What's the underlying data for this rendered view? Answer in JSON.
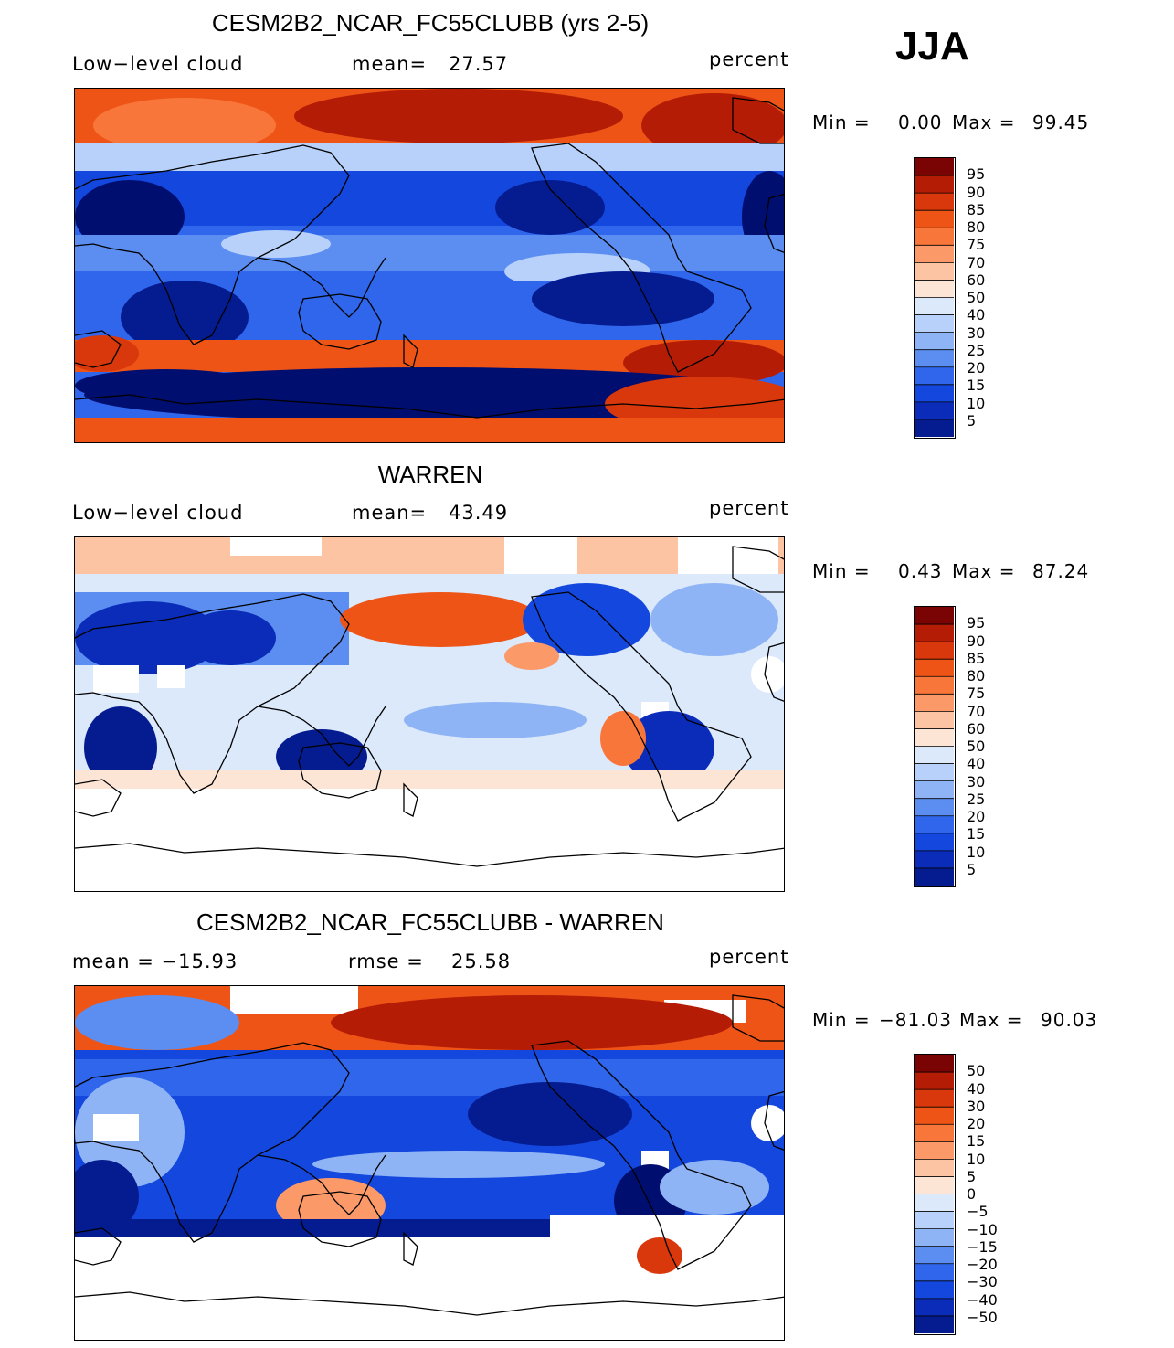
{
  "season": "JJA",
  "palette_warm": [
    "#7a0403",
    "#b51c06",
    "#d8380b",
    "#ee5416",
    "#f8763a",
    "#fb9a68",
    "#fcc4a2",
    "#fde5d6"
  ],
  "palette_cool": [
    "#dbe9fb",
    "#b7d1fa",
    "#8fb4f5",
    "#5b8ef0",
    "#2f66ec",
    "#1447dd",
    "#0a2cb9",
    "#051c91",
    "#000e70"
  ],
  "panels": [
    {
      "title": "CESM2B2_NCAR_FC55CLUBB (yrs 2-5)",
      "left_text": "Low−level  cloud",
      "center_label": "mean=",
      "center_value": "27.57",
      "right_text": "percent",
      "min_label": "Min  =",
      "min_value": "0.00",
      "max_label": "Max  =",
      "max_value": "99.45",
      "colorbar_ticks": [
        "95",
        "90",
        "85",
        "80",
        "75",
        "70",
        "60",
        "50",
        "40",
        "30",
        "25",
        "20",
        "15",
        "10",
        "5"
      ],
      "field": "model"
    },
    {
      "title": "WARREN",
      "left_text": "Low−level  cloud",
      "center_label": "mean=",
      "center_value": "43.49",
      "right_text": "percent",
      "min_label": "Min  =",
      "min_value": "0.43",
      "max_label": "Max  =",
      "max_value": "87.24",
      "colorbar_ticks": [
        "95",
        "90",
        "85",
        "80",
        "75",
        "70",
        "60",
        "50",
        "40",
        "30",
        "25",
        "20",
        "15",
        "10",
        "5"
      ],
      "field": "obs"
    },
    {
      "title": "CESM2B2_NCAR_FC55CLUBB - WARREN",
      "left_text": "mean  =  −15.93",
      "center_label": "rmse  =",
      "center_value": "25.58",
      "right_text": "percent",
      "min_label": "Min  =",
      "min_value": "−81.03",
      "max_label": "Max  =",
      "max_value": "90.03",
      "colorbar_ticks": [
        "50",
        "40",
        "30",
        "20",
        "15",
        "10",
        "5",
        "0",
        "−5",
        "−10",
        "−15",
        "−20",
        "−30",
        "−40",
        "−50"
      ],
      "field": "diff"
    }
  ]
}
